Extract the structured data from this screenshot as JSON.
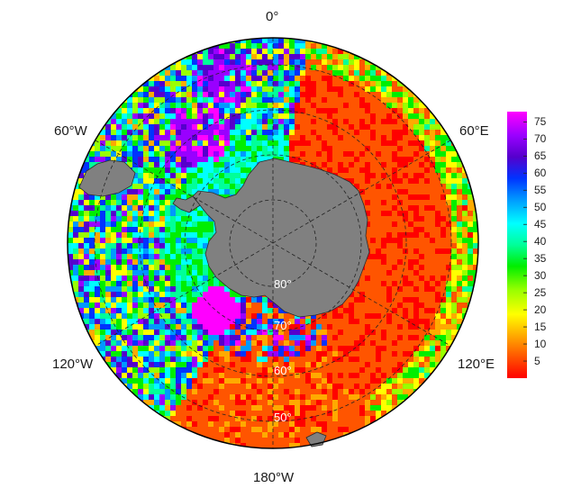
{
  "map": {
    "projection": "south-polar-stereographic",
    "lon_labels": {
      "top": "0°",
      "left_upper": "60°W",
      "right_upper": "60°E",
      "left_lower": "120°W",
      "right_lower": "120°E",
      "bottom": "180°W"
    },
    "lat_labels": [
      "80°",
      "70°",
      "60°",
      "50°"
    ],
    "land_color": "#808080",
    "colorbar": {
      "ticks": [
        "75",
        "70",
        "65",
        "60",
        "55",
        "50",
        "45",
        "40",
        "35",
        "30",
        "25",
        "20",
        "15",
        "10",
        "5"
      ],
      "min": 0,
      "max": 78,
      "colors": [
        "#ff0000",
        "#ff5500",
        "#ffaa00",
        "#ffff00",
        "#99ff00",
        "#00ee00",
        "#00ff99",
        "#00ffff",
        "#0099ff",
        "#0033ff",
        "#5500cc",
        "#9900ff",
        "#ff00ff"
      ]
    }
  }
}
